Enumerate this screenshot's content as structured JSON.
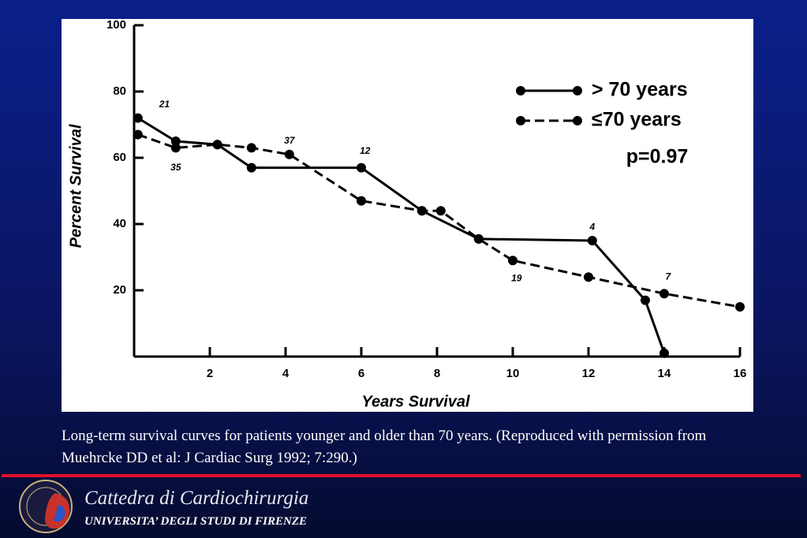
{
  "chart_data": {
    "type": "line",
    "x_label": "Years Survival",
    "y_label": "Percent Survival",
    "xlim": [
      0,
      16
    ],
    "xticks": [
      2,
      4,
      6,
      8,
      10,
      12,
      14,
      16
    ],
    "ylim": [
      0,
      100
    ],
    "yticks": [
      20,
      40,
      60,
      80,
      100
    ],
    "legend": "upper right",
    "series": [
      {
        "name": "> 70 years",
        "color": "#000000",
        "dash": false,
        "x": [
          0.1,
          1.1,
          2.2,
          3.1,
          6,
          7.6,
          9.1,
          12.1,
          13.5,
          14
        ],
        "values": [
          72,
          65,
          64,
          57,
          57,
          44,
          35.5,
          35,
          17,
          1
        ]
      },
      {
        "name": "≤70 years",
        "color": "#000000",
        "dash": true,
        "x": [
          0.1,
          1.1,
          2.2,
          3.1,
          4.1,
          6,
          7.6,
          8.1,
          9.1,
          10,
          12,
          14,
          16
        ],
        "values": [
          67,
          63,
          64,
          63,
          61,
          47,
          44,
          44,
          35.5,
          29,
          24,
          19,
          15
        ]
      }
    ],
    "annotations": [
      {
        "text": "p=0.97"
      },
      {
        "text": "21",
        "x": 0.8,
        "y": 76
      },
      {
        "text": "35",
        "x": 1.1,
        "y": 57
      },
      {
        "text": "37",
        "x": 4.1,
        "y": 65
      },
      {
        "text": "12",
        "x": 6.1,
        "y": 62
      },
      {
        "text": "4",
        "x": 12.1,
        "y": 39
      },
      {
        "text": "19",
        "x": 10.1,
        "y": 23.5
      },
      {
        "text": "7",
        "x": 14.1,
        "y": 24
      }
    ]
  },
  "caption": "Long-term survival curves for patients younger and older than 70 years. (Reproduced with permission from Muehrcke DD et al: J Cardiac Surg 1992; 7:290.)",
  "footer": {
    "title": "Cattedra di Cardiochirurgia",
    "subtitle": "UNIVERSITA’ DEGLI STUDI DI FIRENZE"
  }
}
